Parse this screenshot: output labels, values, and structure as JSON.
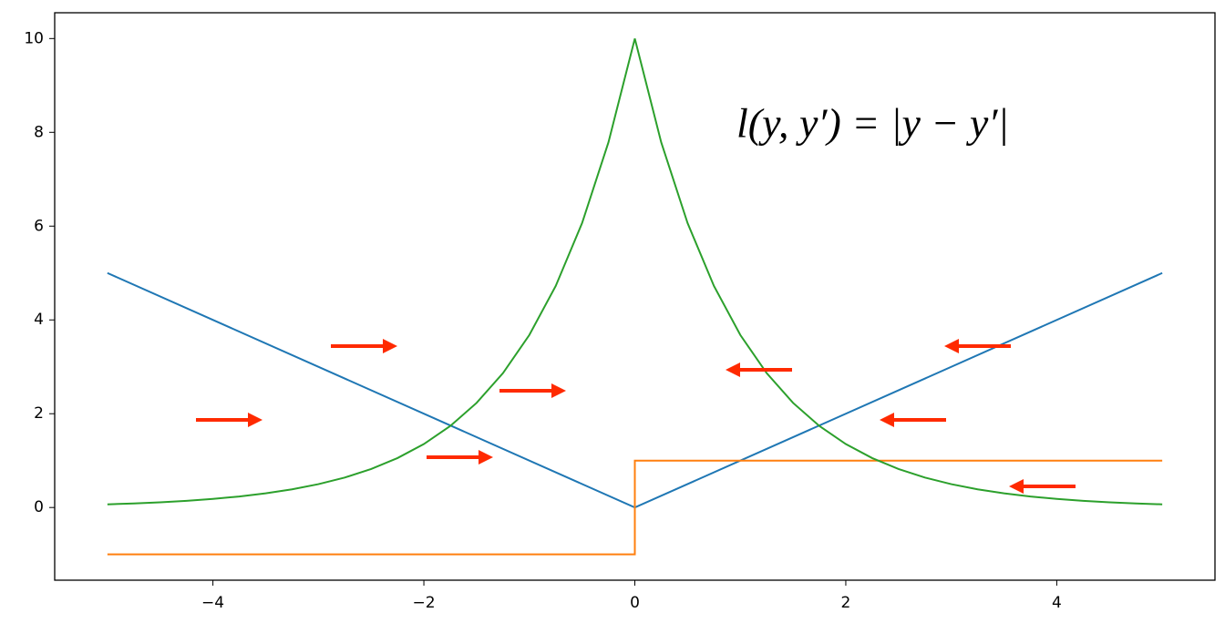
{
  "chart_data": {
    "type": "line",
    "annotation": "l(y, y′) = |y − y′|",
    "xlim": [
      -5.5,
      5.5
    ],
    "ylim": [
      -1.55,
      10.55
    ],
    "xticks": [
      {
        "value": -4,
        "label": "−4"
      },
      {
        "value": -2,
        "label": "−2"
      },
      0,
      2,
      4
    ],
    "yticks": [
      0,
      2,
      4,
      6,
      8,
      10
    ],
    "grid": false,
    "series": [
      {
        "color": "#1f77b4",
        "x": [
          -5,
          0,
          5
        ],
        "values": [
          5,
          0,
          5
        ]
      },
      {
        "color": "#ff7f0e",
        "x": [
          -5,
          0,
          0,
          5
        ],
        "values": [
          -1,
          -1,
          1,
          1
        ]
      },
      {
        "color": "#2ca02c",
        "x": [
          -5,
          -4.75,
          -4.5,
          -4.25,
          -4,
          -3.75,
          -3.5,
          -3.25,
          -3,
          -2.75,
          -2.5,
          -2.25,
          -2,
          -1.75,
          -1.5,
          -1.25,
          -1,
          -0.75,
          -0.5,
          -0.25,
          0,
          0.25,
          0.5,
          0.75,
          1,
          1.25,
          1.5,
          1.75,
          2,
          2.25,
          2.5,
          2.75,
          3,
          3.25,
          3.5,
          3.75,
          4,
          4.25,
          4.5,
          4.75,
          5
        ],
        "values": [
          0.067,
          0.087,
          0.111,
          0.143,
          0.183,
          0.235,
          0.302,
          0.388,
          0.498,
          0.639,
          0.821,
          1.054,
          1.353,
          1.738,
          2.231,
          2.865,
          3.679,
          4.724,
          6.065,
          7.788,
          10,
          7.788,
          6.065,
          4.724,
          3.679,
          2.865,
          2.231,
          1.738,
          1.353,
          1.054,
          0.821,
          0.639,
          0.498,
          0.388,
          0.302,
          0.235,
          0.183,
          0.143,
          0.111,
          0.087,
          0.067
        ]
      }
    ]
  }
}
